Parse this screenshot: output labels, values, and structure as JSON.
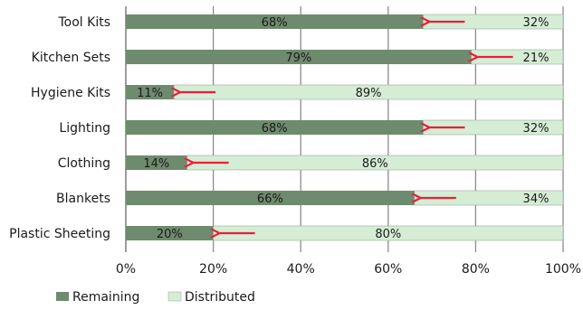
{
  "chart_data": {
    "type": "bar",
    "orientation": "horizontal",
    "stacked": true,
    "percent": true,
    "categories": [
      "Tool Kits",
      "Kitchen Sets",
      "Hygiene Kits",
      "Lighting",
      "Clothing",
      "Blankets",
      "Plastic Sheeting"
    ],
    "series": [
      {
        "name": "Remaining",
        "values": [
          68,
          79,
          11,
          68,
          14,
          66,
          20
        ],
        "labels": [
          "68%",
          "79%",
          "11%",
          "68%",
          "14%",
          "66%",
          "20%"
        ],
        "color": "#6f8b6e"
      },
      {
        "name": "Distributed",
        "values": [
          32,
          21,
          89,
          32,
          86,
          34,
          80
        ],
        "labels": [
          "32%",
          "21%",
          "89%",
          "32%",
          "86%",
          "34%",
          "80%"
        ],
        "color": "#d5ecd5"
      }
    ],
    "xlim": [
      0,
      100
    ],
    "xticks": [
      "0%",
      "20%",
      "40%",
      "60%",
      "80%",
      "100%"
    ],
    "grid": "vertical",
    "legend_position": "bottom-left",
    "annotations": "red arrows pointing left at the Remaining/Distributed boundary",
    "arrow_color": "#e8203a"
  }
}
